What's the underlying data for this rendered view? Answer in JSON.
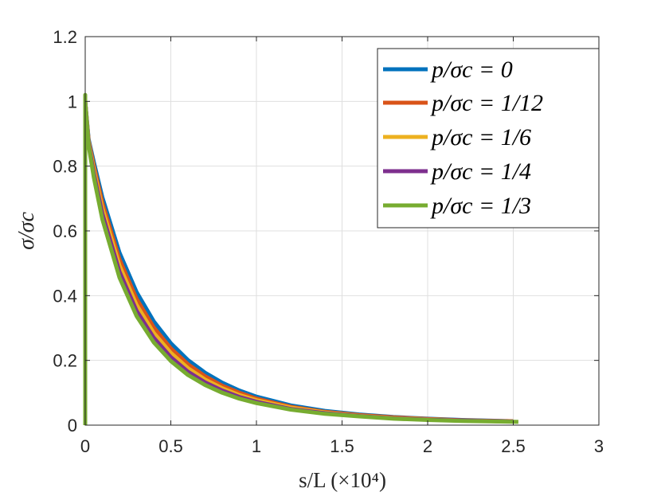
{
  "chart_data": {
    "type": "line",
    "xlabel": "s/L (×10⁴)",
    "ylabel": "σ/σc",
    "xlim": [
      0,
      3
    ],
    "ylim": [
      0,
      1.2
    ],
    "xticks": [
      "0",
      "0.5",
      "1",
      "1.5",
      "2",
      "2.5",
      "3"
    ],
    "yticks": [
      "0",
      "0.2",
      "0.4",
      "0.6",
      "0.8",
      "1",
      "1.2"
    ],
    "grid": true,
    "legend_position": "top-right",
    "series": [
      {
        "name": "p/σc = 0",
        "color": "#0072BD",
        "x": [
          0,
          0.02,
          0.05,
          0.1,
          0.2,
          0.3,
          0.4,
          0.5,
          0.6,
          0.7,
          0.8,
          0.9,
          1.0,
          1.2,
          1.4,
          1.6,
          1.8,
          2.0,
          2.2,
          2.5
        ],
        "y": [
          1.0,
          0.883,
          0.813,
          0.704,
          0.533,
          0.411,
          0.321,
          0.253,
          0.201,
          0.162,
          0.131,
          0.107,
          0.088,
          0.061,
          0.044,
          0.033,
          0.025,
          0.02,
          0.016,
          0.012
        ]
      },
      {
        "name": "p/σc = 1/12",
        "color": "#D95319",
        "x": [
          0,
          0.02,
          0.05,
          0.1,
          0.2,
          0.3,
          0.4,
          0.5,
          0.6,
          0.7,
          0.8,
          0.9,
          1.0,
          1.2,
          1.4,
          1.6,
          1.8,
          2.0,
          2.2,
          2.5
        ],
        "y": [
          1.0,
          0.878,
          0.801,
          0.687,
          0.512,
          0.39,
          0.302,
          0.237,
          0.188,
          0.151,
          0.122,
          0.1,
          0.082,
          0.057,
          0.041,
          0.031,
          0.024,
          0.019,
          0.015,
          0.012
        ]
      },
      {
        "name": "p/σc = 1/6",
        "color": "#EDB120",
        "x": [
          0,
          0.02,
          0.05,
          0.1,
          0.2,
          0.3,
          0.4,
          0.5,
          0.6,
          0.7,
          0.8,
          0.9,
          1.0,
          1.2,
          1.4,
          1.6,
          1.8,
          2.0,
          2.2,
          2.5
        ],
        "y": [
          1.0,
          0.873,
          0.789,
          0.67,
          0.493,
          0.371,
          0.285,
          0.223,
          0.176,
          0.141,
          0.114,
          0.093,
          0.077,
          0.054,
          0.039,
          0.029,
          0.022,
          0.018,
          0.014,
          0.011
        ]
      },
      {
        "name": "p/σc = 1/4",
        "color": "#7E2F8E",
        "x": [
          0,
          0.02,
          0.05,
          0.1,
          0.2,
          0.3,
          0.4,
          0.5,
          0.6,
          0.7,
          0.8,
          0.9,
          1.0,
          1.2,
          1.4,
          1.6,
          1.8,
          2.0,
          2.2,
          2.5
        ],
        "y": [
          1.0,
          0.868,
          0.777,
          0.653,
          0.474,
          0.353,
          0.27,
          0.21,
          0.165,
          0.132,
          0.107,
          0.087,
          0.072,
          0.05,
          0.037,
          0.028,
          0.021,
          0.017,
          0.014,
          0.011
        ]
      },
      {
        "name": "p/σc = 1/3",
        "color": "#77AC30",
        "x": [
          0,
          0,
          0,
          0.02,
          0.05,
          0.1,
          0.2,
          0.3,
          0.4,
          0.5,
          0.6,
          0.7,
          0.8,
          0.9,
          1.0,
          1.2,
          1.4,
          1.6,
          1.8,
          2.0,
          2.2,
          2.53
        ],
        "y": [
          0,
          1.02,
          1.0,
          0.863,
          0.765,
          0.636,
          0.456,
          0.337,
          0.256,
          0.198,
          0.155,
          0.124,
          0.1,
          0.082,
          0.068,
          0.048,
          0.035,
          0.027,
          0.02,
          0.016,
          0.013,
          0.01
        ]
      }
    ]
  }
}
